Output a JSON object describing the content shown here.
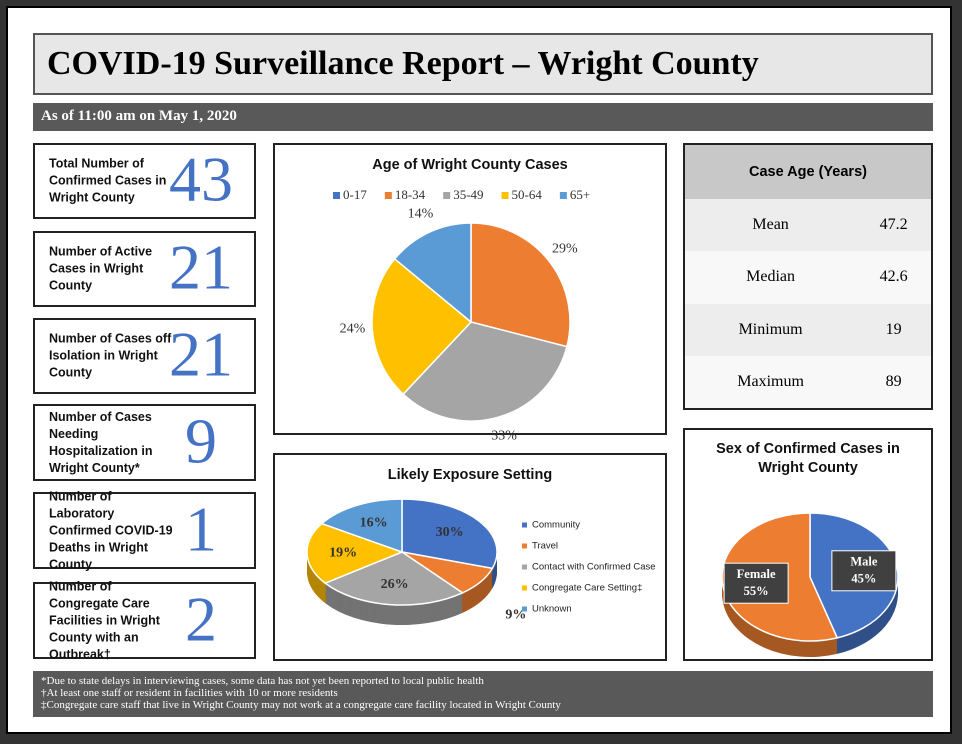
{
  "header": {
    "title": "COVID-19 Surveillance Report – Wright County",
    "subtitle": "As of 11:00 am on May 1, 2020"
  },
  "stats": [
    {
      "label": "Total Number of Confirmed Cases in Wright County",
      "value": 43
    },
    {
      "label": "Number of Active Cases in Wright County",
      "value": 21
    },
    {
      "label": "Number of Cases off Isolation in Wright County",
      "value": 21
    },
    {
      "label": "Number of Cases Needing Hospitalization in Wright County*",
      "value": 9
    },
    {
      "label": "Number of Laboratory Confirmed COVID-19 Deaths in Wright County",
      "value": 1
    },
    {
      "label": "Number of Congregate Care Facilities in Wright County with an Outbreak†",
      "value": 2
    }
  ],
  "table": {
    "header": "Case Age (Years)",
    "rows": [
      [
        "Mean",
        47.2
      ],
      [
        "Median",
        42.6
      ],
      [
        "Minimum",
        19
      ],
      [
        "Maximum",
        89
      ]
    ]
  },
  "chart_data": [
    {
      "type": "pie",
      "title": "Age of Wright County Cases",
      "categories": [
        "0-17",
        "18-34",
        "35-49",
        "50-64",
        "65+"
      ],
      "values": [
        0,
        29,
        33,
        24,
        14
      ],
      "value_labels": [
        null,
        "29%",
        "33%",
        "24%",
        "14%"
      ],
      "colors": [
        "#4472c4",
        "#ed7d31",
        "#a5a5a5",
        "#ffc000",
        "#5b9bd5"
      ],
      "legend": "top"
    },
    {
      "type": "pie3d",
      "title": "Likely Exposure Setting",
      "categories": [
        "Community",
        "Travel",
        "Contact with Confirmed Case",
        "Congregate Care Setting‡",
        "Unknown"
      ],
      "values": [
        30,
        9,
        26,
        19,
        16
      ],
      "value_labels": [
        "30%",
        "9%",
        "26%",
        "19%",
        "16%"
      ],
      "colors": [
        "#4472c4",
        "#ed7d31",
        "#a5a5a5",
        "#ffc000",
        "#5b9bd5"
      ],
      "legend": "right"
    },
    {
      "type": "pie3d",
      "title": "Sex of Confirmed Cases in Wright County",
      "categories": [
        "Male",
        "Female"
      ],
      "values": [
        45,
        55
      ],
      "value_labels": [
        "45%",
        "55%"
      ],
      "colors": [
        "#4472c4",
        "#ed7d31"
      ],
      "legend": "none"
    }
  ],
  "footnotes": [
    "*Due to state delays in interviewing cases, some data has not yet been reported to local public health",
    "†At least one staff or resident in facilities with 10 or more residents",
    "‡Congregate care staff that live in Wright County may not work at a congregate care facility located in Wright County"
  ]
}
